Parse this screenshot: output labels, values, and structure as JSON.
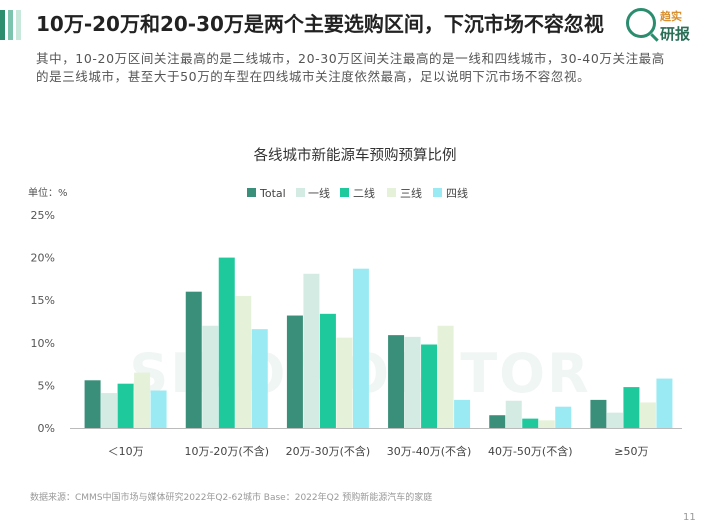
{
  "header": {
    "title": "10万-20万和20-30万是两个主要选购区间，下沉市场不容忽视",
    "description": "其中，10-20万区间关注最高的是二线城市，20-30万区间关注最高的是一线和四线城市，30-40万关注最高的是三线城市，甚至大于50万的车型在四线城市关注度依然最高，足以说明下沉市场不容忽视。"
  },
  "logo": {
    "line1": "趋实",
    "line2": "研报",
    "icon": "magnifier-q-logo-icon"
  },
  "watermark": "SINOMONITOR",
  "colors": {
    "accent1": "#2b8c6e",
    "accent2": "#a8d9c9",
    "accent3": "#1fc9a0"
  },
  "chart_data": {
    "type": "bar",
    "title": "各线城市新能源车预购预算比例",
    "unit_label": "单位：%",
    "categories": [
      "＜10万",
      "10万-20万(不含)",
      "20万-30万(不含)",
      "30万-40万(不含)",
      "40万-50万(不含)",
      "≥50万"
    ],
    "ylim": [
      0,
      25
    ],
    "yticks": [
      "0%",
      "5%",
      "10%",
      "15%",
      "20%",
      "25%"
    ],
    "legend_position": "top",
    "grid": false,
    "series": [
      {
        "name": "Total",
        "color": "#3a8f7a",
        "values": [
          5.6,
          16.0,
          13.2,
          10.9,
          1.5,
          3.3
        ]
      },
      {
        "name": "一线",
        "color": "#d3ebe3",
        "values": [
          4.1,
          12.0,
          18.1,
          10.7,
          3.2,
          1.8
        ]
      },
      {
        "name": "二线",
        "color": "#1ec99b",
        "values": [
          5.2,
          20.0,
          13.4,
          9.8,
          1.1,
          4.8
        ]
      },
      {
        "name": "三线",
        "color": "#e6f1d9",
        "values": [
          6.5,
          15.5,
          10.6,
          12.0,
          0.9,
          3.0
        ]
      },
      {
        "name": "四线",
        "color": "#9aeaf3",
        "values": [
          4.4,
          11.6,
          18.7,
          3.3,
          2.5,
          5.8
        ]
      }
    ]
  },
  "footer": {
    "source": "数据来源：CMMS中国市场与媒体研究2022年Q2-62城市  Base：2022年Q2 预购新能源汽车的家庭",
    "page_number": "11"
  }
}
